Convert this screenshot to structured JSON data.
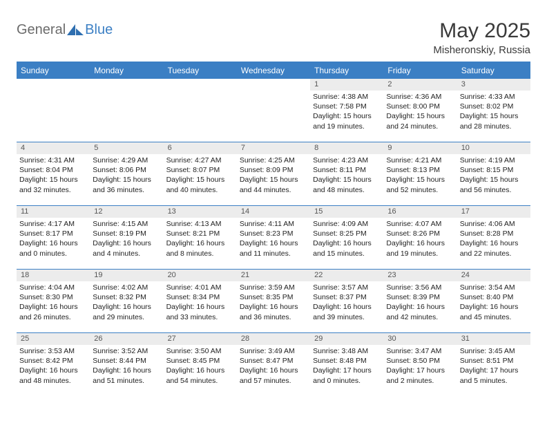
{
  "logo": {
    "general": "General",
    "blue": "Blue"
  },
  "title": "May 2025",
  "location": "Misheronskiy, Russia",
  "colors": {
    "header_bg": "#3b7fc4",
    "header_text": "#ffffff",
    "daynum_bg": "#ececec",
    "daynum_text": "#555555",
    "row_border": "#3b7fc4",
    "body_text": "#222222",
    "logo_gray": "#6b6b6b",
    "logo_blue": "#3b7fc4",
    "title_color": "#3a3a3a",
    "page_bg": "#ffffff"
  },
  "typography": {
    "title_fontsize": 30,
    "location_fontsize": 15,
    "header_fontsize": 12,
    "daynum_fontsize": 11,
    "cell_fontsize": 10.5,
    "logo_fontsize": 20
  },
  "week_headers": [
    "Sunday",
    "Monday",
    "Tuesday",
    "Wednesday",
    "Thursday",
    "Friday",
    "Saturday"
  ],
  "weeks": [
    [
      {
        "empty": true
      },
      {
        "empty": true
      },
      {
        "empty": true
      },
      {
        "empty": true
      },
      {
        "day": "1",
        "sunrise": "Sunrise: 4:38 AM",
        "sunset": "Sunset: 7:58 PM",
        "d1": "Daylight: 15 hours",
        "d2": "and 19 minutes."
      },
      {
        "day": "2",
        "sunrise": "Sunrise: 4:36 AM",
        "sunset": "Sunset: 8:00 PM",
        "d1": "Daylight: 15 hours",
        "d2": "and 24 minutes."
      },
      {
        "day": "3",
        "sunrise": "Sunrise: 4:33 AM",
        "sunset": "Sunset: 8:02 PM",
        "d1": "Daylight: 15 hours",
        "d2": "and 28 minutes."
      }
    ],
    [
      {
        "day": "4",
        "sunrise": "Sunrise: 4:31 AM",
        "sunset": "Sunset: 8:04 PM",
        "d1": "Daylight: 15 hours",
        "d2": "and 32 minutes."
      },
      {
        "day": "5",
        "sunrise": "Sunrise: 4:29 AM",
        "sunset": "Sunset: 8:06 PM",
        "d1": "Daylight: 15 hours",
        "d2": "and 36 minutes."
      },
      {
        "day": "6",
        "sunrise": "Sunrise: 4:27 AM",
        "sunset": "Sunset: 8:07 PM",
        "d1": "Daylight: 15 hours",
        "d2": "and 40 minutes."
      },
      {
        "day": "7",
        "sunrise": "Sunrise: 4:25 AM",
        "sunset": "Sunset: 8:09 PM",
        "d1": "Daylight: 15 hours",
        "d2": "and 44 minutes."
      },
      {
        "day": "8",
        "sunrise": "Sunrise: 4:23 AM",
        "sunset": "Sunset: 8:11 PM",
        "d1": "Daylight: 15 hours",
        "d2": "and 48 minutes."
      },
      {
        "day": "9",
        "sunrise": "Sunrise: 4:21 AM",
        "sunset": "Sunset: 8:13 PM",
        "d1": "Daylight: 15 hours",
        "d2": "and 52 minutes."
      },
      {
        "day": "10",
        "sunrise": "Sunrise: 4:19 AM",
        "sunset": "Sunset: 8:15 PM",
        "d1": "Daylight: 15 hours",
        "d2": "and 56 minutes."
      }
    ],
    [
      {
        "day": "11",
        "sunrise": "Sunrise: 4:17 AM",
        "sunset": "Sunset: 8:17 PM",
        "d1": "Daylight: 16 hours",
        "d2": "and 0 minutes."
      },
      {
        "day": "12",
        "sunrise": "Sunrise: 4:15 AM",
        "sunset": "Sunset: 8:19 PM",
        "d1": "Daylight: 16 hours",
        "d2": "and 4 minutes."
      },
      {
        "day": "13",
        "sunrise": "Sunrise: 4:13 AM",
        "sunset": "Sunset: 8:21 PM",
        "d1": "Daylight: 16 hours",
        "d2": "and 8 minutes."
      },
      {
        "day": "14",
        "sunrise": "Sunrise: 4:11 AM",
        "sunset": "Sunset: 8:23 PM",
        "d1": "Daylight: 16 hours",
        "d2": "and 11 minutes."
      },
      {
        "day": "15",
        "sunrise": "Sunrise: 4:09 AM",
        "sunset": "Sunset: 8:25 PM",
        "d1": "Daylight: 16 hours",
        "d2": "and 15 minutes."
      },
      {
        "day": "16",
        "sunrise": "Sunrise: 4:07 AM",
        "sunset": "Sunset: 8:26 PM",
        "d1": "Daylight: 16 hours",
        "d2": "and 19 minutes."
      },
      {
        "day": "17",
        "sunrise": "Sunrise: 4:06 AM",
        "sunset": "Sunset: 8:28 PM",
        "d1": "Daylight: 16 hours",
        "d2": "and 22 minutes."
      }
    ],
    [
      {
        "day": "18",
        "sunrise": "Sunrise: 4:04 AM",
        "sunset": "Sunset: 8:30 PM",
        "d1": "Daylight: 16 hours",
        "d2": "and 26 minutes."
      },
      {
        "day": "19",
        "sunrise": "Sunrise: 4:02 AM",
        "sunset": "Sunset: 8:32 PM",
        "d1": "Daylight: 16 hours",
        "d2": "and 29 minutes."
      },
      {
        "day": "20",
        "sunrise": "Sunrise: 4:01 AM",
        "sunset": "Sunset: 8:34 PM",
        "d1": "Daylight: 16 hours",
        "d2": "and 33 minutes."
      },
      {
        "day": "21",
        "sunrise": "Sunrise: 3:59 AM",
        "sunset": "Sunset: 8:35 PM",
        "d1": "Daylight: 16 hours",
        "d2": "and 36 minutes."
      },
      {
        "day": "22",
        "sunrise": "Sunrise: 3:57 AM",
        "sunset": "Sunset: 8:37 PM",
        "d1": "Daylight: 16 hours",
        "d2": "and 39 minutes."
      },
      {
        "day": "23",
        "sunrise": "Sunrise: 3:56 AM",
        "sunset": "Sunset: 8:39 PM",
        "d1": "Daylight: 16 hours",
        "d2": "and 42 minutes."
      },
      {
        "day": "24",
        "sunrise": "Sunrise: 3:54 AM",
        "sunset": "Sunset: 8:40 PM",
        "d1": "Daylight: 16 hours",
        "d2": "and 45 minutes."
      }
    ],
    [
      {
        "day": "25",
        "sunrise": "Sunrise: 3:53 AM",
        "sunset": "Sunset: 8:42 PM",
        "d1": "Daylight: 16 hours",
        "d2": "and 48 minutes."
      },
      {
        "day": "26",
        "sunrise": "Sunrise: 3:52 AM",
        "sunset": "Sunset: 8:44 PM",
        "d1": "Daylight: 16 hours",
        "d2": "and 51 minutes."
      },
      {
        "day": "27",
        "sunrise": "Sunrise: 3:50 AM",
        "sunset": "Sunset: 8:45 PM",
        "d1": "Daylight: 16 hours",
        "d2": "and 54 minutes."
      },
      {
        "day": "28",
        "sunrise": "Sunrise: 3:49 AM",
        "sunset": "Sunset: 8:47 PM",
        "d1": "Daylight: 16 hours",
        "d2": "and 57 minutes."
      },
      {
        "day": "29",
        "sunrise": "Sunrise: 3:48 AM",
        "sunset": "Sunset: 8:48 PM",
        "d1": "Daylight: 17 hours",
        "d2": "and 0 minutes."
      },
      {
        "day": "30",
        "sunrise": "Sunrise: 3:47 AM",
        "sunset": "Sunset: 8:50 PM",
        "d1": "Daylight: 17 hours",
        "d2": "and 2 minutes."
      },
      {
        "day": "31",
        "sunrise": "Sunrise: 3:45 AM",
        "sunset": "Sunset: 8:51 PM",
        "d1": "Daylight: 17 hours",
        "d2": "and 5 minutes."
      }
    ]
  ]
}
